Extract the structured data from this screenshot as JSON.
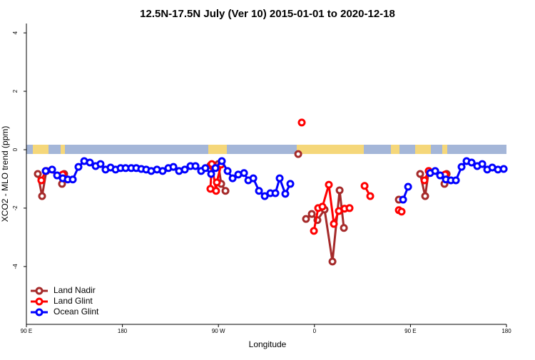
{
  "chart_data": {
    "type": "line",
    "title": "12.5N-17.5N July (Ver 10)   2015-01-01 to 2020-12-18",
    "x_label": "Longitude",
    "y_label": "XCO2 - MLO trend (ppm)",
    "xlim": [
      90,
      540
    ],
    "xticks": [
      {
        "value": 90,
        "label": "90 E"
      },
      180,
      {
        "value": 270,
        "label": "90 W"
      },
      {
        "value": 360,
        "label": "0"
      },
      {
        "value": 450,
        "label": "90 E"
      },
      {
        "value": 540,
        "label": "180"
      }
    ],
    "ylim": [
      -5.98,
      4.32
    ],
    "yticks": [
      -4,
      -2,
      0,
      2,
      4
    ],
    "legend": "bottomleft",
    "series": [
      {
        "name": "Land Nadir",
        "color": "#a52a2a",
        "x": [
          100.7,
          104.7,
          108.7,
          null,
          123.4,
          125.4,
          null,
          262.5,
          269.9,
          272.6,
          276.6,
          null,
          344.8,
          null,
          352.1,
          357.5,
          362.8,
          369.5,
          376.9,
          383.6,
          387.6,
          null,
          439.1,
          null,
          459.1,
          463.8,
          467.1,
          null,
          481.9,
          483.9
        ],
        "values": [
          -0.83,
          -1.59,
          -0.73,
          null,
          -1.17,
          -0.83,
          null,
          -0.54,
          -0.49,
          -1.17,
          -1.41,
          null,
          -0.15,
          null,
          -2.37,
          -2.2,
          -2.41,
          -2.05,
          -3.83,
          -1.39,
          -2.68,
          null,
          -1.71,
          null,
          -0.83,
          -1.59,
          -0.73,
          null,
          -1.17,
          -0.83
        ]
      },
      {
        "name": "Land Glint",
        "color": "#ff0000",
        "x": [
          104.0,
          108.1,
          124.1,
          null,
          262.5,
          263.8,
          267.8,
          268.5,
          272.5,
          null,
          348.1,
          null,
          359.5,
          363.5,
          367.5,
          373.5,
          378.2,
          382.9,
          388.2,
          392.9,
          null,
          407.0,
          412.3,
          null,
          439.1,
          441.7,
          null,
          463.1,
          467.1,
          482.5
        ],
        "values": [
          -1.05,
          -0.73,
          -0.85,
          null,
          -1.34,
          -0.49,
          -1.41,
          -1.12,
          -0.51,
          null,
          0.93,
          null,
          -2.78,
          -2.0,
          -1.95,
          -1.2,
          -2.54,
          -2.1,
          -2.02,
          -2.0,
          null,
          -1.24,
          -1.59,
          null,
          -2.07,
          -2.12,
          null,
          -1.05,
          -0.73,
          -0.85
        ]
      },
      {
        "name": "Ocean Glint",
        "color": "#0000ff",
        "x": [
          108.1,
          114.1,
          118.8,
          124.1,
          128.8,
          133.5,
          138.8,
          144.2,
          149.5,
          154.9,
          159.5,
          164.2,
          168.9,
          173.6,
          178.3,
          183.0,
          188.3,
          193.0,
          197.7,
          202.3,
          207.0,
          212.4,
          217.7,
          223.1,
          227.8,
          233.1,
          238.5,
          243.8,
          248.5,
          253.8,
          257.8,
          263.2,
          267.2,
          273.2,
          278.6,
          283.3,
          288.6,
          294.0,
          298.0,
          302.7,
          308.0,
          313.4,
          318.7,
          323.4,
          327.4,
          332.7,
          337.4,
          null,
          443.1,
          447.8,
          null,
          468.5,
          473.2,
          477.8,
          483.2,
          487.9,
          492.6,
          497.9,
          502.6,
          507.3,
          512.6,
          517.3,
          522.0,
          526.7,
          532.0,
          537.4
        ],
        "values": [
          -0.73,
          -0.68,
          -0.88,
          -0.98,
          -1.02,
          -1.02,
          -0.59,
          -0.39,
          -0.44,
          -0.56,
          -0.49,
          -0.68,
          -0.61,
          -0.68,
          -0.63,
          -0.63,
          -0.63,
          -0.63,
          -0.66,
          -0.68,
          -0.73,
          -0.68,
          -0.73,
          -0.63,
          -0.59,
          -0.73,
          -0.68,
          -0.56,
          -0.56,
          -0.73,
          -0.63,
          -0.83,
          -0.63,
          -0.39,
          -0.73,
          -0.98,
          -0.85,
          -0.8,
          -1.05,
          -0.98,
          -1.41,
          -1.59,
          -1.49,
          -1.49,
          -0.98,
          -1.51,
          -1.17,
          null,
          -1.71,
          -1.27,
          null,
          -0.8,
          -0.73,
          -0.88,
          -1.02,
          -1.05,
          -1.05,
          -0.59,
          -0.39,
          -0.44,
          -0.56,
          -0.49,
          -0.68,
          -0.61,
          -0.68,
          -0.66
        ]
      }
    ]
  }
}
